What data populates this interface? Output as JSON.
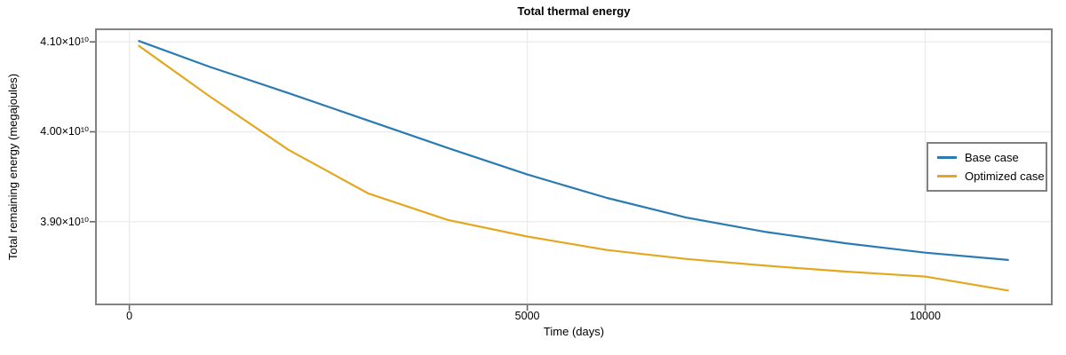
{
  "chart_data": {
    "type": "line",
    "title": "Total thermal energy",
    "xlabel": "Time (days)",
    "ylabel": "Total remaining energy (megajoules)",
    "xlim": [
      -420,
      11590
    ],
    "ylim": [
      38080000000.0,
      41140000000.0
    ],
    "x_ticks": [
      0,
      5000,
      10000
    ],
    "x_tick_labels": [
      "0",
      "5000",
      "10000"
    ],
    "y_ticks": [
      39000000000.0,
      40000000000.0,
      41000000000.0
    ],
    "y_tick_labels": [
      "3.90×10¹⁰",
      "4.00×10¹⁰",
      "4.10×10¹⁰"
    ],
    "grid": true,
    "legend_position": "right-inside",
    "series": [
      {
        "name": "Base case",
        "color": "#2b7bb3",
        "x": [
          120,
          1000,
          2000,
          3000,
          4000,
          5000,
          6000,
          7000,
          8000,
          9000,
          10000,
          11040
        ],
        "y": [
          41010000000.0,
          40725000000.0,
          40430000000.0,
          40125000000.0,
          39820000000.0,
          39525000000.0,
          39265000000.0,
          39045000000.0,
          38885000000.0,
          38760000000.0,
          38655000000.0,
          38575000000.0
        ]
      },
      {
        "name": "Optimized case",
        "color": "#e3a820",
        "x": [
          120,
          1000,
          2000,
          3000,
          4000,
          5000,
          6000,
          7000,
          8000,
          9000,
          10000,
          11040
        ],
        "y": [
          40955000000.0,
          40400000000.0,
          39800000000.0,
          39315000000.0,
          39020000000.0,
          38835000000.0,
          38685000000.0,
          38585000000.0,
          38510000000.0,
          38445000000.0,
          38390000000.0,
          38235000000.0
        ]
      }
    ]
  },
  "colors": {
    "plot_border": "#828282",
    "gridline": "#ececec",
    "tick": "#666666",
    "background": "#ffffff",
    "text": "#000000"
  }
}
